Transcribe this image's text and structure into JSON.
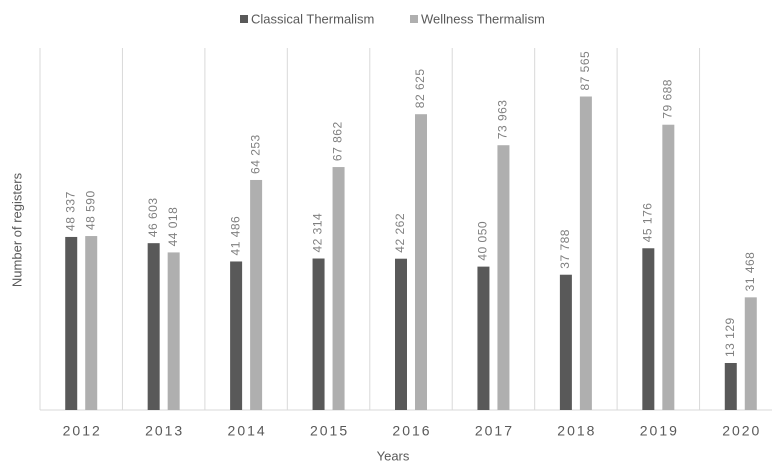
{
  "chart_data": {
    "type": "bar",
    "categories": [
      "2012",
      "2013",
      "2014",
      "2015",
      "2016",
      "2017",
      "2018",
      "2019",
      "2020"
    ],
    "series": [
      {
        "name": "Classical Thermalism",
        "color": "#595959",
        "values": [
          48337,
          46603,
          41486,
          42314,
          42262,
          40050,
          37788,
          45176,
          13129
        ],
        "value_labels": [
          "48 337",
          "46 603",
          "41 486",
          "42 314",
          "42 262",
          "40 050",
          "37 788",
          "45 176",
          "13 129"
        ]
      },
      {
        "name": "Wellness Thermalism",
        "color": "#afafaf",
        "values": [
          48590,
          44018,
          64253,
          67862,
          82625,
          73963,
          87565,
          79688,
          31468
        ],
        "value_labels": [
          "48 590",
          "44 018",
          "64 253",
          "67 862",
          "82 625",
          "73 963",
          "87 565",
          "79 688",
          "31 468"
        ]
      }
    ],
    "x_label": "Years",
    "y_label": "Number of registers",
    "ylim": [
      0,
      100000
    ],
    "grid": true,
    "legend": "top"
  }
}
